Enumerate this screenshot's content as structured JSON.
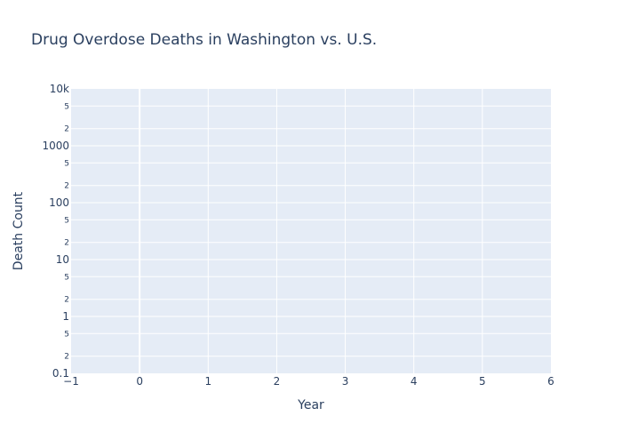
{
  "chart_data": {
    "type": "line",
    "title": "Drug Overdose Deaths in Washington vs. U.S.",
    "xlabel": "Year",
    "ylabel": "Death Count",
    "xlim": [
      -1,
      6
    ],
    "ylim": [
      0.1,
      10000
    ],
    "yscale": "log",
    "x_ticks": [
      "−1",
      "0",
      "1",
      "2",
      "3",
      "4",
      "5",
      "6"
    ],
    "y_major_ticks": [
      {
        "value": 0.1,
        "label": "0.1"
      },
      {
        "value": 1,
        "label": "1"
      },
      {
        "value": 10,
        "label": "10"
      },
      {
        "value": 100,
        "label": "100"
      },
      {
        "value": 1000,
        "label": "1000"
      },
      {
        "value": 10000,
        "label": "10k"
      }
    ],
    "y_minor_labels": [
      "2",
      "5"
    ],
    "grid": true,
    "legend": "none",
    "series": [],
    "colors": {
      "plot_bg": "#e5ecf6",
      "grid": "#ffffff",
      "text": "#2a3f5f"
    }
  }
}
